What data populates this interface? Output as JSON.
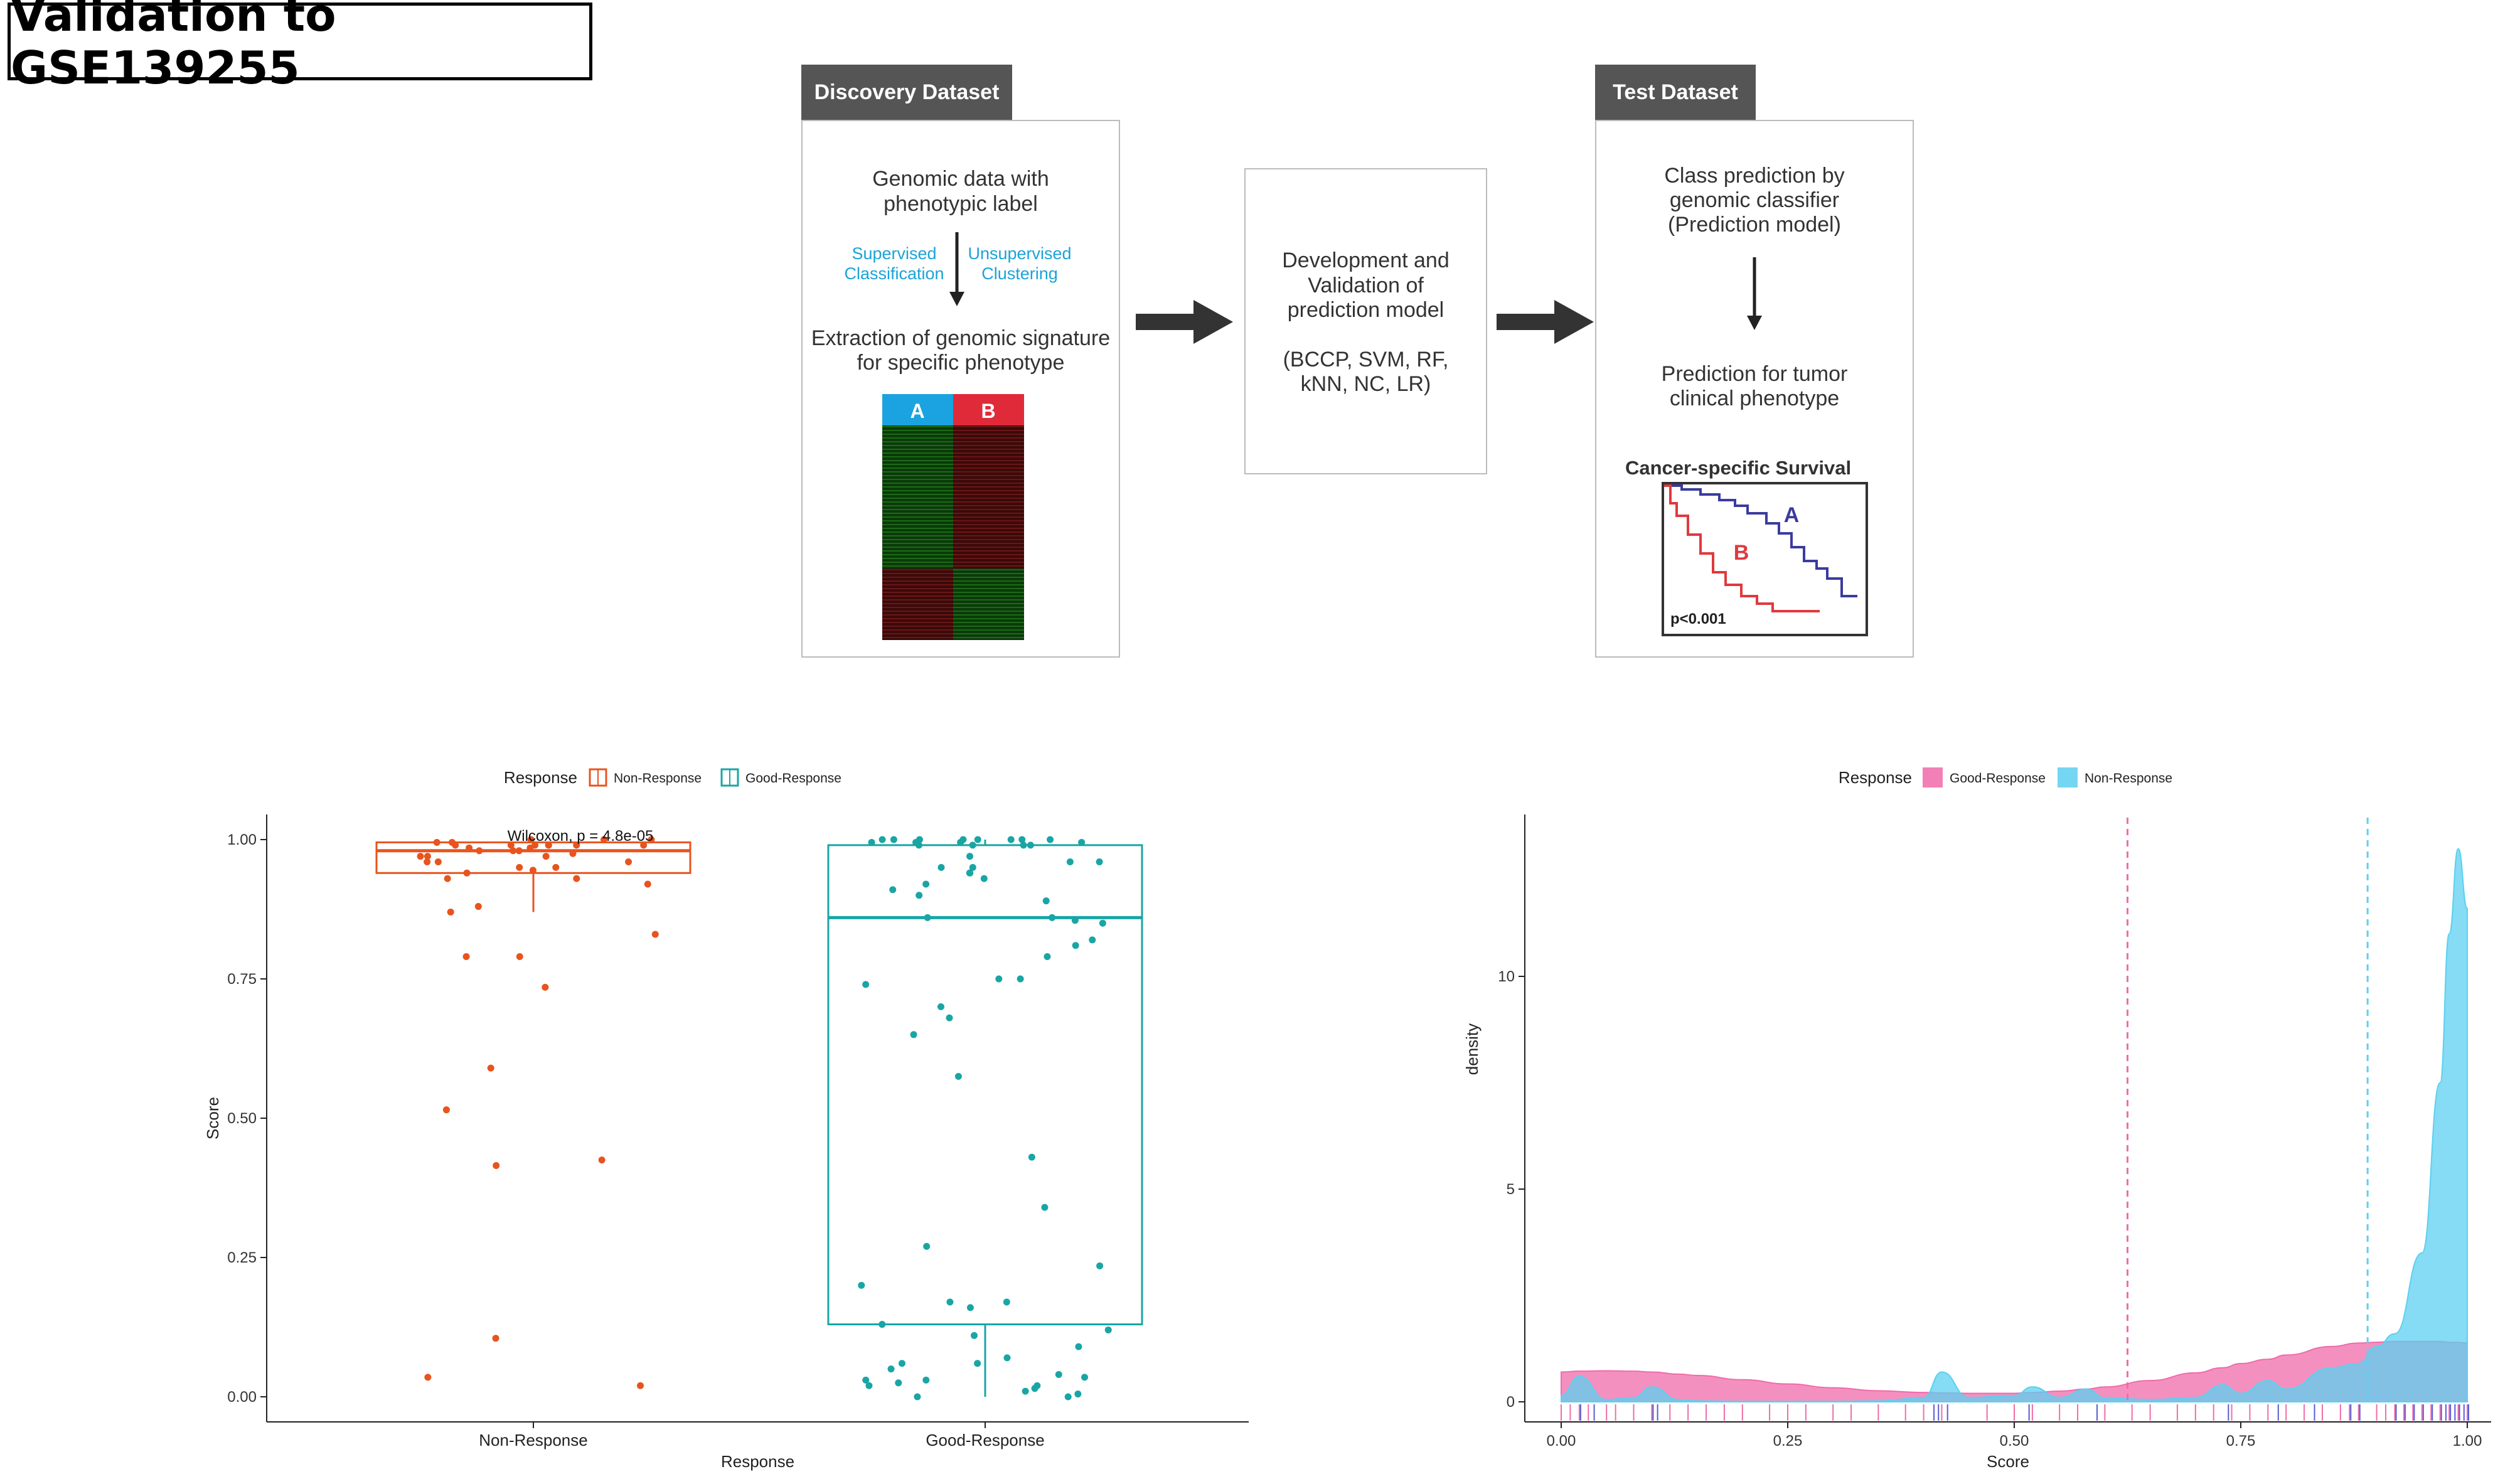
{
  "page_title": "Validation to GSE139255",
  "flow": {
    "discovery": {
      "header": "Discovery Dataset",
      "line1": "Genomic data with",
      "line2": "phenotypic label",
      "supervised1": "Supervised",
      "supervised2": "Classification",
      "unsupervised1": "Unsupervised",
      "unsupervised2": "Clustering",
      "extract1": "Extraction of genomic signature",
      "extract2": "for specific phenotype",
      "heat_a": "A",
      "heat_b": "B"
    },
    "model": {
      "line1": "Development and",
      "line2": "Validation of",
      "line3": "prediction model",
      "line4": "(BCCP, SVM, RF,",
      "line5": "kNN, NC, LR)"
    },
    "test": {
      "header": "Test Dataset",
      "line1": "Class prediction by",
      "line2": "genomic classifier",
      "line3": "(Prediction model)",
      "line4": "Prediction for tumor",
      "line5": "clinical phenotype",
      "survival_title": "Cancer-specific Survival",
      "curve_a": "A",
      "curve_b": "B",
      "pvalue": "p<0.001"
    }
  },
  "colors": {
    "non_response": "#E8541E",
    "good_response": "#1AA5A5",
    "density_good": "#F06BAA",
    "density_non": "#5CD0F0",
    "flow_header": "#555555",
    "curve_a": "#3B3BA0",
    "curve_b": "#E0393E"
  },
  "chart_data": [
    {
      "type": "box",
      "legend_title": "Response",
      "legend_position": "top",
      "legend": [
        "Non-Response",
        "Good-Response"
      ],
      "annotation": "Wilcoxon, p = 4.8e-05",
      "xlabel": "Response",
      "ylabel": "Score",
      "categories": [
        "Non-Response",
        "Good-Response"
      ],
      "yticks": [
        "0.00",
        "0.25",
        "0.50",
        "0.75",
        "1.00"
      ],
      "ylim": [
        0,
        1
      ],
      "grid": false,
      "boxes": [
        {
          "name": "Non-Response",
          "q1": 0.94,
          "median": 0.98,
          "q3": 0.995,
          "whisker_low": 0.87,
          "whisker_high": 1.0
        },
        {
          "name": "Good-Response",
          "q1": 0.13,
          "median": 0.86,
          "q3": 0.99,
          "whisker_low": 0.0,
          "whisker_high": 1.0
        }
      ],
      "points": [
        {
          "group": "Non-Response",
          "values": [
            1.0,
            0.99,
            0.995,
            0.985,
            0.98,
            0.99,
            0.97,
            0.96,
            0.95,
            0.99,
            0.98,
            1.0,
            0.975,
            0.96,
            0.945,
            0.94,
            0.93,
            0.93,
            0.99,
            0.985,
            0.995,
            0.97,
            0.99,
            1.0,
            0.96,
            0.95,
            0.92,
            0.99,
            0.98,
            0.97,
            0.99,
            0.88,
            0.87,
            0.83,
            0.79,
            0.79,
            0.735,
            0.59,
            0.515,
            0.425,
            0.415,
            0.105,
            0.035,
            0.02
          ]
        },
        {
          "group": "Good-Response",
          "values": [
            1.0,
            0.995,
            1.0,
            0.99,
            1.0,
            0.995,
            1.0,
            0.99,
            1.0,
            0.995,
            0.99,
            1.0,
            0.995,
            1.0,
            0.99,
            1.0,
            0.96,
            0.95,
            0.94,
            0.93,
            0.97,
            0.96,
            0.95,
            0.94,
            0.92,
            0.9,
            0.89,
            0.91,
            0.86,
            0.86,
            0.855,
            0.85,
            0.82,
            0.81,
            0.79,
            0.75,
            0.75,
            0.74,
            0.7,
            0.68,
            0.65,
            0.575,
            0.43,
            0.34,
            0.27,
            0.235,
            0.2,
            0.17,
            0.17,
            0.16,
            0.13,
            0.12,
            0.11,
            0.09,
            0.07,
            0.06,
            0.05,
            0.04,
            0.035,
            0.03,
            0.03,
            0.025,
            0.02,
            0.015,
            0.01,
            0.005,
            0.0,
            0.0,
            0.06,
            0.02
          ]
        }
      ]
    },
    {
      "type": "area",
      "legend_title": "Response",
      "legend_position": "top",
      "legend": [
        "Good-Response",
        "Non-Response"
      ],
      "xlabel": "Score",
      "ylabel": "density",
      "xticks": [
        "0.00",
        "0.25",
        "0.50",
        "0.75",
        "1.00"
      ],
      "yticks": [
        "0",
        "5",
        "10"
      ],
      "xlim": [
        0,
        1
      ],
      "ylim": [
        0,
        13.5
      ],
      "grid": false,
      "vlines": [
        {
          "series": "Good-Response",
          "x": 0.625
        },
        {
          "series": "Non-Response",
          "x": 0.89
        }
      ],
      "x": [
        0.0,
        0.02,
        0.05,
        0.08,
        0.1,
        0.13,
        0.15,
        0.2,
        0.25,
        0.3,
        0.35,
        0.4,
        0.42,
        0.45,
        0.5,
        0.52,
        0.55,
        0.58,
        0.6,
        0.65,
        0.7,
        0.73,
        0.75,
        0.78,
        0.8,
        0.85,
        0.88,
        0.9,
        0.92,
        0.95,
        0.97,
        0.98,
        0.99,
        1.0
      ],
      "series": [
        {
          "name": "Good-Response",
          "values": [
            0.7,
            0.72,
            0.73,
            0.72,
            0.7,
            0.65,
            0.62,
            0.52,
            0.42,
            0.33,
            0.26,
            0.22,
            0.21,
            0.2,
            0.2,
            0.22,
            0.25,
            0.3,
            0.35,
            0.5,
            0.68,
            0.8,
            0.9,
            1.0,
            1.1,
            1.3,
            1.38,
            1.4,
            1.42,
            1.42,
            1.42,
            1.4,
            1.4,
            1.38
          ]
        },
        {
          "name": "Non-Response",
          "values": [
            0.15,
            0.6,
            0.05,
            0.1,
            0.35,
            0.05,
            0.02,
            0.01,
            0.01,
            0.01,
            0.02,
            0.1,
            0.7,
            0.1,
            0.15,
            0.35,
            0.1,
            0.3,
            0.1,
            0.05,
            0.1,
            0.4,
            0.2,
            0.5,
            0.3,
            0.8,
            0.9,
            1.3,
            1.6,
            3.5,
            7.5,
            11.0,
            13.0,
            11.6
          ]
        }
      ]
    }
  ]
}
